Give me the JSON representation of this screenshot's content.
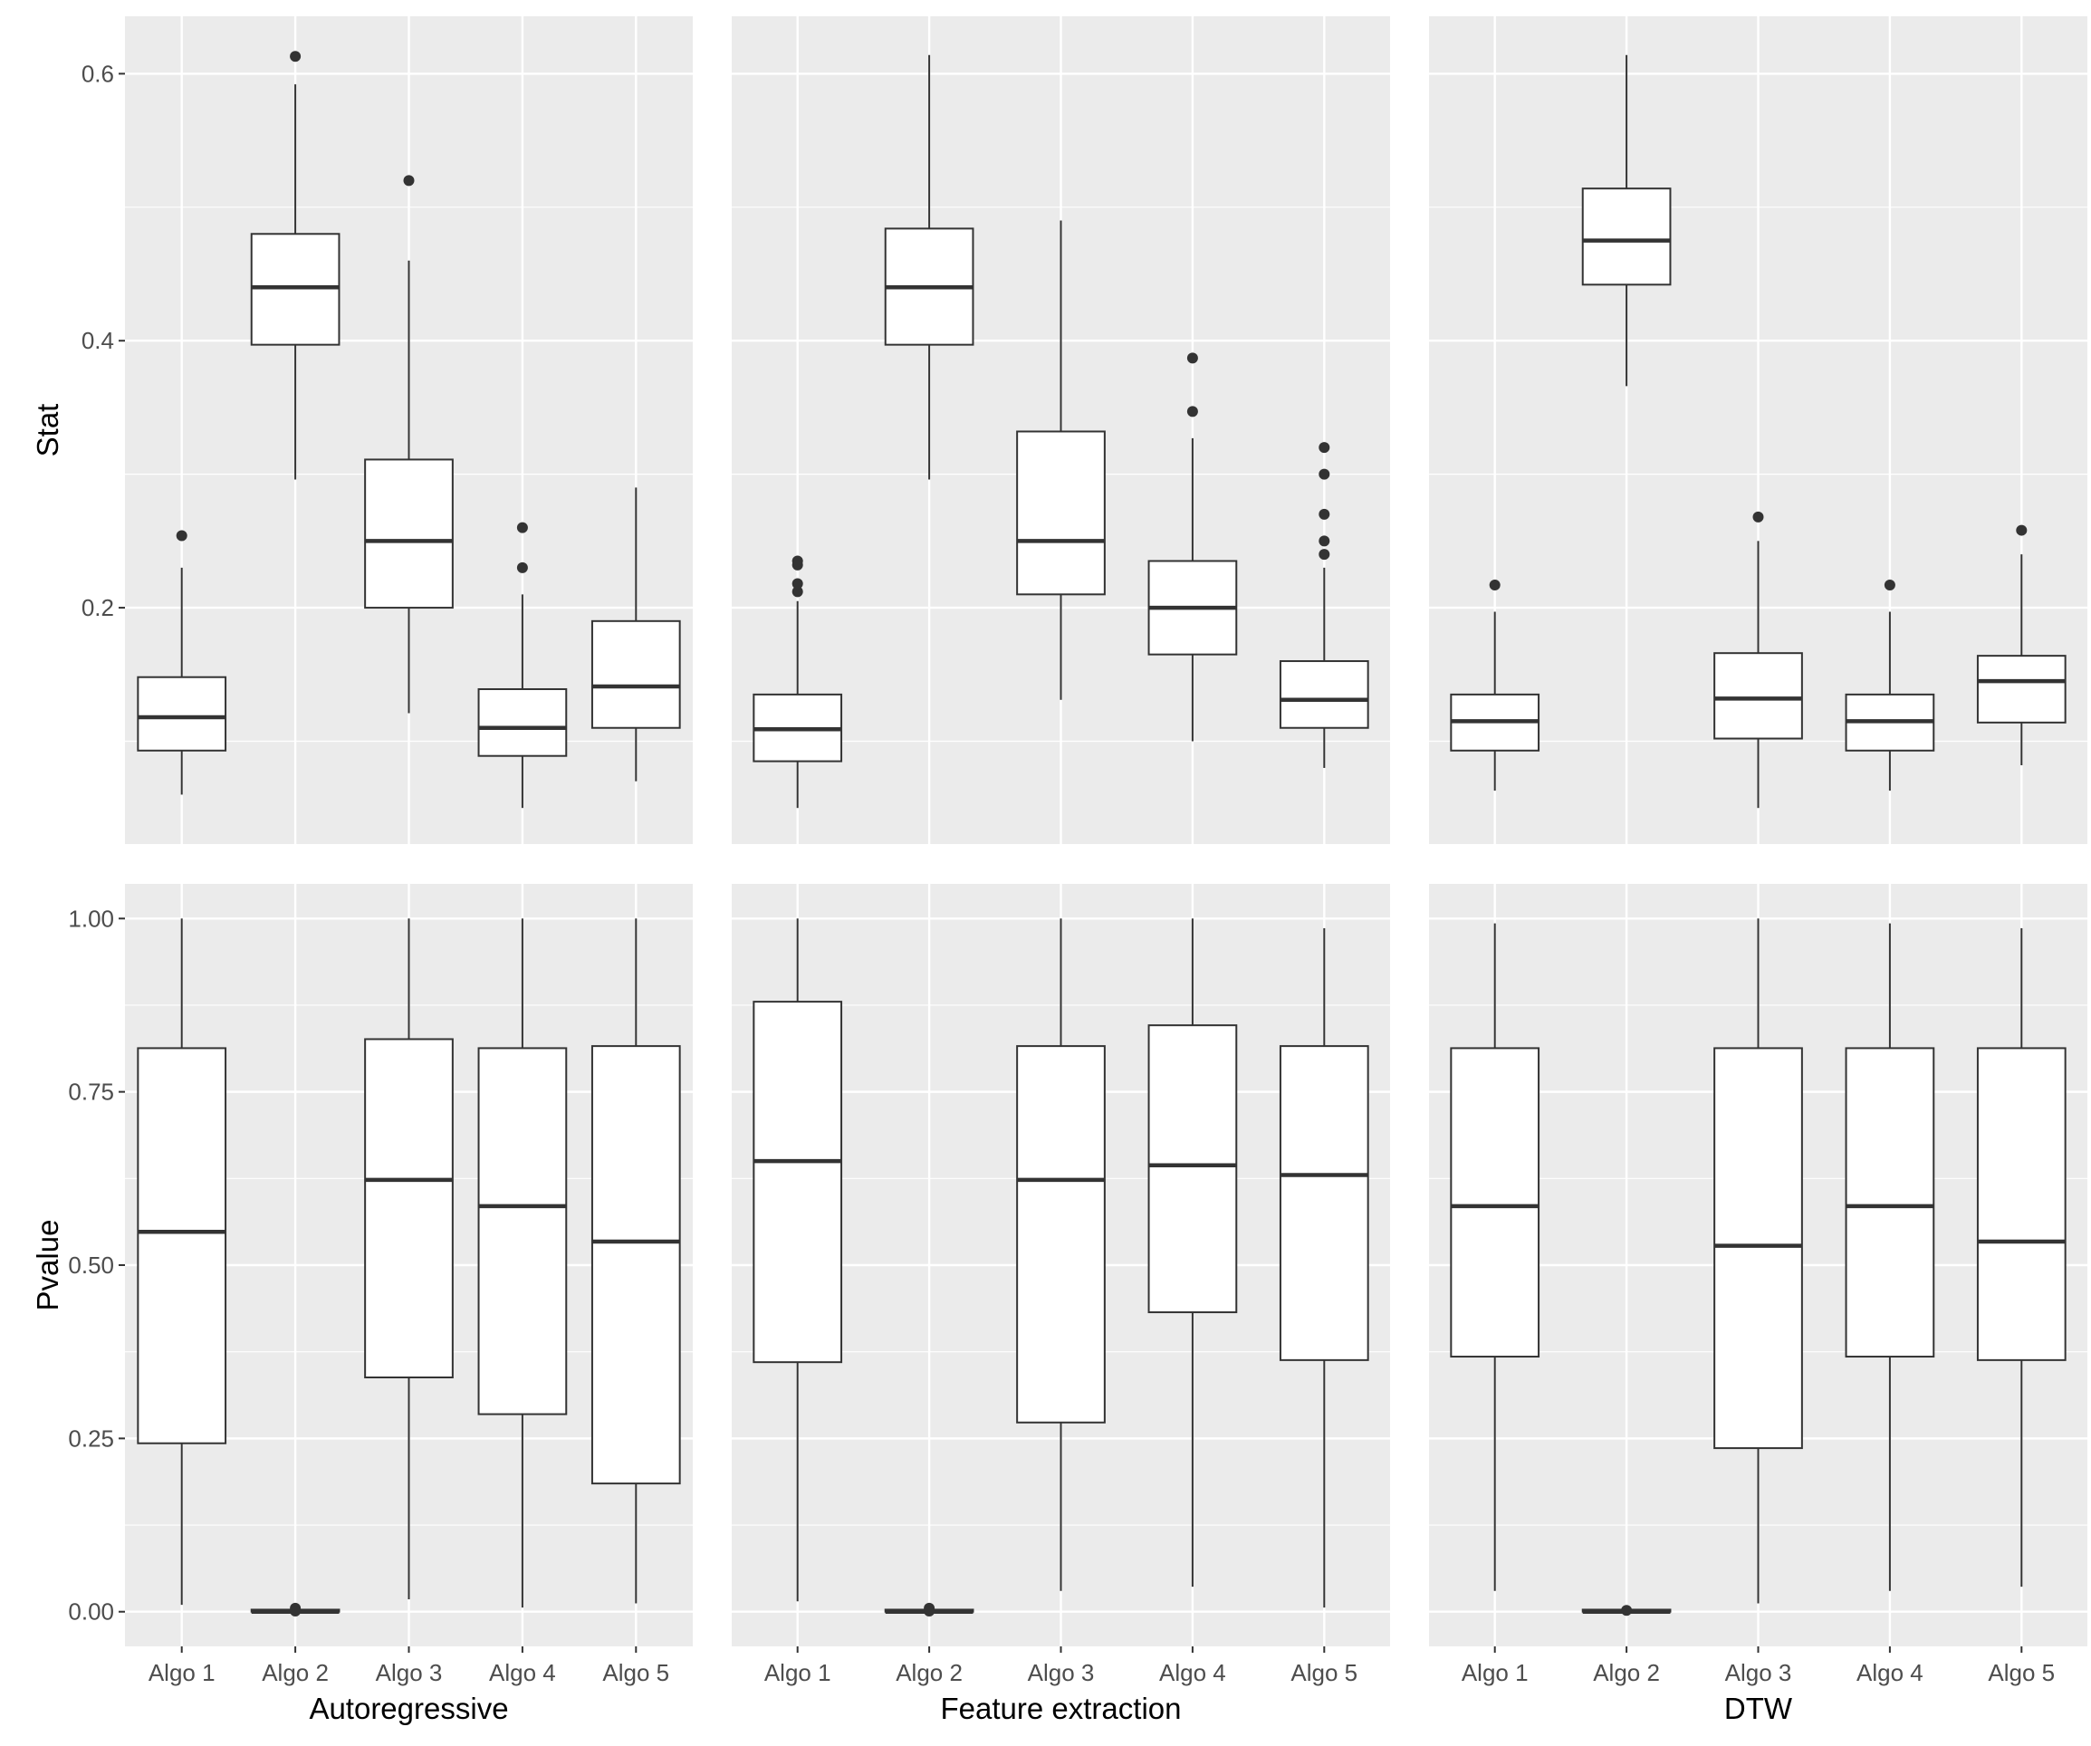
{
  "chart_data": {
    "type": "boxplot",
    "categories": [
      "Algo 1",
      "Algo 2",
      "Algo 3",
      "Algo 4",
      "Algo 5"
    ],
    "facets": [
      "Autoregressive",
      "Feature extraction",
      "DTW"
    ],
    "row_labels": [
      "Stat",
      "Pvalue"
    ],
    "rows": [
      {
        "ylabel": "Stat",
        "ticks": [
          0.2,
          0.4,
          0.6
        ],
        "tick_labels": [
          "0.2",
          "0.4",
          "0.6"
        ],
        "panels": [
          {
            "facet": "Autoregressive",
            "ylim": [
              0.023,
              0.643
            ],
            "gridlines": [
              0.1,
              0.2,
              0.3,
              0.4,
              0.5,
              0.6
            ],
            "boxes": [
              {
                "category": "Algo 1",
                "q1": 0.093,
                "median": 0.118,
                "q3": 0.148,
                "whisker_low": 0.06,
                "whisker_high": 0.23,
                "outliers": [
                  0.254
                ]
              },
              {
                "category": "Algo 2",
                "q1": 0.397,
                "median": 0.44,
                "q3": 0.48,
                "whisker_low": 0.296,
                "whisker_high": 0.592,
                "outliers": [
                  0.613
                ]
              },
              {
                "category": "Algo 3",
                "q1": 0.2,
                "median": 0.25,
                "q3": 0.311,
                "whisker_low": 0.121,
                "whisker_high": 0.46,
                "outliers": [
                  0.52
                ]
              },
              {
                "category": "Algo 4",
                "q1": 0.089,
                "median": 0.11,
                "q3": 0.139,
                "whisker_low": 0.05,
                "whisker_high": 0.21,
                "outliers": [
                  0.23,
                  0.26
                ]
              },
              {
                "category": "Algo 5",
                "q1": 0.11,
                "median": 0.141,
                "q3": 0.19,
                "whisker_low": 0.07,
                "whisker_high": 0.29,
                "outliers": []
              }
            ]
          },
          {
            "facet": "Feature extraction",
            "ylim": [
              0.023,
              0.643
            ],
            "gridlines": [
              0.1,
              0.2,
              0.3,
              0.4,
              0.5,
              0.6
            ],
            "boxes": [
              {
                "category": "Algo 1",
                "q1": 0.085,
                "median": 0.109,
                "q3": 0.135,
                "whisker_low": 0.05,
                "whisker_high": 0.205,
                "outliers": [
                  0.212,
                  0.218,
                  0.232,
                  0.235
                ]
              },
              {
                "category": "Algo 2",
                "q1": 0.397,
                "median": 0.44,
                "q3": 0.484,
                "whisker_low": 0.296,
                "whisker_high": 0.614,
                "outliers": []
              },
              {
                "category": "Algo 3",
                "q1": 0.21,
                "median": 0.25,
                "q3": 0.332,
                "whisker_low": 0.131,
                "whisker_high": 0.49,
                "outliers": []
              },
              {
                "category": "Algo 4",
                "q1": 0.165,
                "median": 0.2,
                "q3": 0.235,
                "whisker_low": 0.1,
                "whisker_high": 0.327,
                "outliers": [
                  0.347,
                  0.387
                ]
              },
              {
                "category": "Algo 5",
                "q1": 0.11,
                "median": 0.131,
                "q3": 0.16,
                "whisker_low": 0.08,
                "whisker_high": 0.23,
                "outliers": [
                  0.24,
                  0.25,
                  0.27,
                  0.3,
                  0.32
                ]
              }
            ]
          },
          {
            "facet": "DTW",
            "ylim": [
              0.023,
              0.643
            ],
            "gridlines": [
              0.1,
              0.2,
              0.3,
              0.4,
              0.5,
              0.6
            ],
            "boxes": [
              {
                "category": "Algo 1",
                "q1": 0.093,
                "median": 0.115,
                "q3": 0.135,
                "whisker_low": 0.063,
                "whisker_high": 0.197,
                "outliers": [
                  0.217
                ]
              },
              {
                "category": "Algo 2",
                "q1": 0.442,
                "median": 0.475,
                "q3": 0.514,
                "whisker_low": 0.366,
                "whisker_high": 0.614,
                "outliers": []
              },
              {
                "category": "Algo 3",
                "q1": 0.102,
                "median": 0.132,
                "q3": 0.166,
                "whisker_low": 0.05,
                "whisker_high": 0.25,
                "outliers": [
                  0.268
                ]
              },
              {
                "category": "Algo 4",
                "q1": 0.093,
                "median": 0.115,
                "q3": 0.135,
                "whisker_low": 0.063,
                "whisker_high": 0.197,
                "outliers": [
                  0.217
                ]
              },
              {
                "category": "Algo 5",
                "q1": 0.114,
                "median": 0.145,
                "q3": 0.164,
                "whisker_low": 0.082,
                "whisker_high": 0.24,
                "outliers": [
                  0.258
                ]
              }
            ]
          }
        ]
      },
      {
        "ylabel": "Pvalue",
        "ticks": [
          0.0,
          0.25,
          0.5,
          0.75,
          1.0
        ],
        "tick_labels": [
          "0.00",
          "0.25",
          "0.50",
          "0.75",
          "1.00"
        ],
        "panels": [
          {
            "facet": "Autoregressive",
            "ylim": [
              -0.05,
              1.05
            ],
            "gridlines": [
              0.0,
              0.125,
              0.25,
              0.375,
              0.5,
              0.625,
              0.75,
              0.875,
              1.0
            ],
            "boxes": [
              {
                "category": "Algo 1",
                "q1": 0.243,
                "median": 0.548,
                "q3": 0.813,
                "whisker_low": 0.01,
                "whisker_high": 1.0,
                "outliers": []
              },
              {
                "category": "Algo 2",
                "q1": 0.0,
                "median": 0.0,
                "q3": 0.003,
                "whisker_low": 0.0,
                "whisker_high": 0.003,
                "outliers": [
                  0.005,
                  0.001
                ]
              },
              {
                "category": "Algo 3",
                "q1": 0.338,
                "median": 0.623,
                "q3": 0.826,
                "whisker_low": 0.018,
                "whisker_high": 1.0,
                "outliers": []
              },
              {
                "category": "Algo 4",
                "q1": 0.285,
                "median": 0.585,
                "q3": 0.813,
                "whisker_low": 0.006,
                "whisker_high": 1.0,
                "outliers": []
              },
              {
                "category": "Algo 5",
                "q1": 0.185,
                "median": 0.534,
                "q3": 0.816,
                "whisker_low": 0.012,
                "whisker_high": 1.0,
                "outliers": []
              }
            ]
          },
          {
            "facet": "Feature extraction",
            "ylim": [
              -0.05,
              1.05
            ],
            "gridlines": [
              0.0,
              0.125,
              0.25,
              0.375,
              0.5,
              0.625,
              0.75,
              0.875,
              1.0
            ],
            "boxes": [
              {
                "category": "Algo 1",
                "q1": 0.36,
                "median": 0.65,
                "q3": 0.88,
                "whisker_low": 0.015,
                "whisker_high": 1.0,
                "outliers": []
              },
              {
                "category": "Algo 2",
                "q1": 0.0,
                "median": 0.0,
                "q3": 0.003,
                "whisker_low": 0.0,
                "whisker_high": 0.003,
                "outliers": [
                  0.005,
                  0.001
                ]
              },
              {
                "category": "Algo 3",
                "q1": 0.273,
                "median": 0.623,
                "q3": 0.816,
                "whisker_low": 0.03,
                "whisker_high": 1.0,
                "outliers": []
              },
              {
                "category": "Algo 4",
                "q1": 0.432,
                "median": 0.644,
                "q3": 0.846,
                "whisker_low": 0.036,
                "whisker_high": 1.0,
                "outliers": []
              },
              {
                "category": "Algo 5",
                "q1": 0.363,
                "median": 0.63,
                "q3": 0.816,
                "whisker_low": 0.006,
                "whisker_high": 0.986,
                "outliers": []
              }
            ]
          },
          {
            "facet": "DTW",
            "ylim": [
              -0.05,
              1.05
            ],
            "gridlines": [
              0.0,
              0.125,
              0.25,
              0.375,
              0.5,
              0.625,
              0.75,
              0.875,
              1.0
            ],
            "boxes": [
              {
                "category": "Algo 1",
                "q1": 0.368,
                "median": 0.585,
                "q3": 0.813,
                "whisker_low": 0.03,
                "whisker_high": 0.993,
                "outliers": []
              },
              {
                "category": "Algo 2",
                "q1": 0.0,
                "median": 0.0,
                "q3": 0.003,
                "whisker_low": 0.0,
                "whisker_high": 0.003,
                "outliers": [
                  0.002
                ]
              },
              {
                "category": "Algo 3",
                "q1": 0.236,
                "median": 0.528,
                "q3": 0.813,
                "whisker_low": 0.012,
                "whisker_high": 1.0,
                "outliers": []
              },
              {
                "category": "Algo 4",
                "q1": 0.368,
                "median": 0.585,
                "q3": 0.813,
                "whisker_low": 0.03,
                "whisker_high": 0.993,
                "outliers": []
              },
              {
                "category": "Algo 5",
                "q1": 0.363,
                "median": 0.534,
                "q3": 0.813,
                "whisker_low": 0.036,
                "whisker_high": 0.986,
                "outliers": []
              }
            ]
          }
        ]
      }
    ]
  },
  "colors": {
    "panel_bg": "#ebebeb",
    "grid": "#ffffff",
    "box_fill": "#ffffff",
    "box_stroke": "#333333",
    "axis_text": "#4d4d4d",
    "title_text": "#000000"
  }
}
